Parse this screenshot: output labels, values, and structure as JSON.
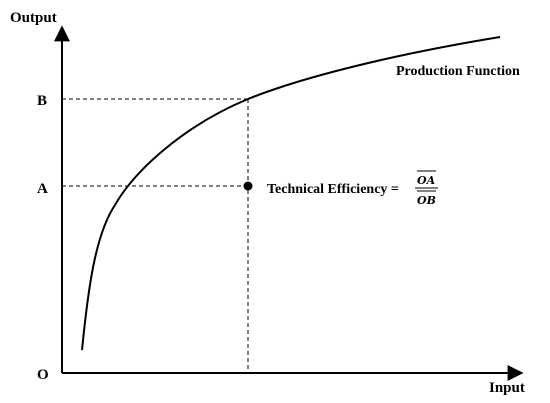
{
  "axes": {
    "y_label": "Output",
    "x_label": "Input",
    "origin_label": "O"
  },
  "levels": {
    "b_label": "B",
    "a_label": "A"
  },
  "curve": {
    "label": "Production Function"
  },
  "efficiency": {
    "label": "Technical Efficiency =",
    "numerator": "OA",
    "denominator": "OB"
  },
  "colors": {
    "ink": "#000000",
    "background": "#ffffff"
  }
}
